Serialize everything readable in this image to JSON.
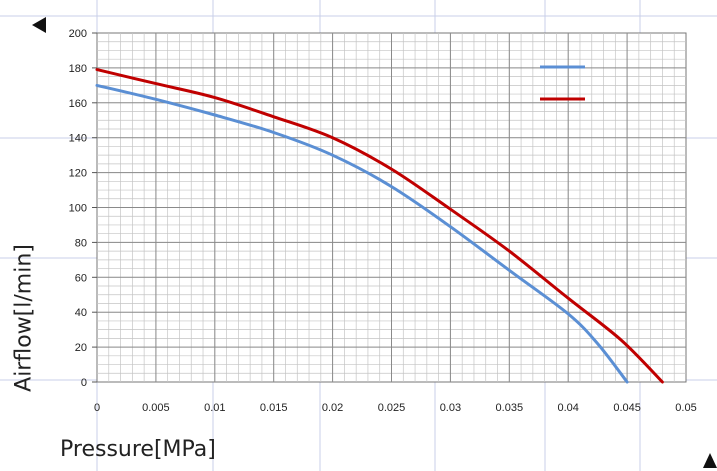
{
  "chart_data": {
    "type": "line",
    "xlabel": "Pressure[MPa]",
    "ylabel": "Airflow[l/min]",
    "xlim": [
      0,
      0.05
    ],
    "ylim": [
      0,
      200
    ],
    "x_ticks": [
      "0",
      "0.005",
      "0.01",
      "0.015",
      "0.02",
      "0.025",
      "0.03",
      "0.035",
      "0.04",
      "0.045",
      "0.05"
    ],
    "y_ticks": [
      "0",
      "20",
      "40",
      "60",
      "80",
      "100",
      "120",
      "140",
      "160",
      "180",
      "200"
    ],
    "grid": true,
    "legend_position": "top-right",
    "series": [
      {
        "color": "#5b8fd4",
        "points": [
          [
            0,
            170
          ],
          [
            0.005,
            162
          ],
          [
            0.01,
            153
          ],
          [
            0.015,
            143
          ],
          [
            0.02,
            130
          ],
          [
            0.025,
            112
          ],
          [
            0.03,
            89
          ],
          [
            0.035,
            64
          ],
          [
            0.04,
            39
          ],
          [
            0.0425,
            22
          ],
          [
            0.045,
            0
          ]
        ]
      },
      {
        "color": "#c00000",
        "points": [
          [
            0,
            179
          ],
          [
            0.005,
            171
          ],
          [
            0.01,
            163
          ],
          [
            0.015,
            152
          ],
          [
            0.02,
            140
          ],
          [
            0.025,
            122
          ],
          [
            0.03,
            99
          ],
          [
            0.035,
            75
          ],
          [
            0.04,
            48
          ],
          [
            0.0445,
            24
          ],
          [
            0.048,
            0
          ]
        ]
      }
    ]
  }
}
